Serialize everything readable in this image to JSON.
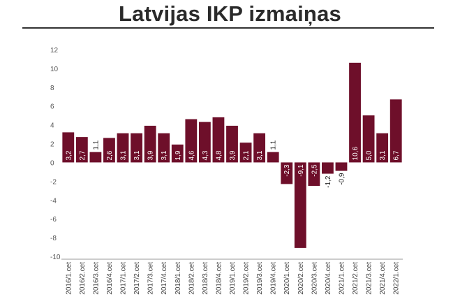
{
  "chart_data": {
    "type": "bar",
    "title": "Latvijas IKP izmaiņas",
    "categories": [
      "2016/1.cet",
      "2016/2.cet",
      "2016/3.cet",
      "2016/4.cet",
      "2017/1.cet",
      "2017/2.cet",
      "2017/3.cet",
      "2017/4.cet",
      "2018/1.cet",
      "2018/2.cet",
      "2018/3.cet",
      "2018/4.cet",
      "2019/1.cet",
      "2019/2.cet",
      "2019/3.cet",
      "2019/4.cet",
      "2020/1.cet",
      "2020/2.cet",
      "2020/3.cet",
      "2020/4.cet",
      "2021/1.cet",
      "2021/2.cet",
      "2021/3.cet",
      "2021/4.cet",
      "2022/1.cet"
    ],
    "values": [
      3.2,
      2.7,
      1.1,
      2.6,
      3.1,
      3.1,
      3.9,
      3.1,
      1.9,
      4.6,
      4.3,
      4.8,
      3.9,
      2.1,
      3.1,
      1.1,
      -2.3,
      -9.1,
      -2.5,
      -1.2,
      -0.9,
      10.6,
      5.0,
      3.1,
      6.7
    ],
    "data_labels": [
      "3,2",
      "2,7",
      "1,1",
      "2,6",
      "3,1",
      "3,1",
      "3,9",
      "3,1",
      "1,9",
      "4,6",
      "4,3",
      "4,8",
      "3,9",
      "2,1",
      "3,1",
      "1,1",
      "-2,3",
      "-9,1",
      "-2,5",
      "-1,2",
      "-0,9",
      "10,6",
      "5,0",
      "3,1",
      "6,7"
    ],
    "y_ticks": [
      "12",
      "10",
      "8",
      "6",
      "4",
      "2",
      "0",
      "-2",
      "-4",
      "-6",
      "-8",
      "-10"
    ],
    "ylim": [
      -10,
      12
    ],
    "xlabel": "",
    "ylabel": "",
    "grid": false,
    "bar_color": "#6e0f2a"
  }
}
